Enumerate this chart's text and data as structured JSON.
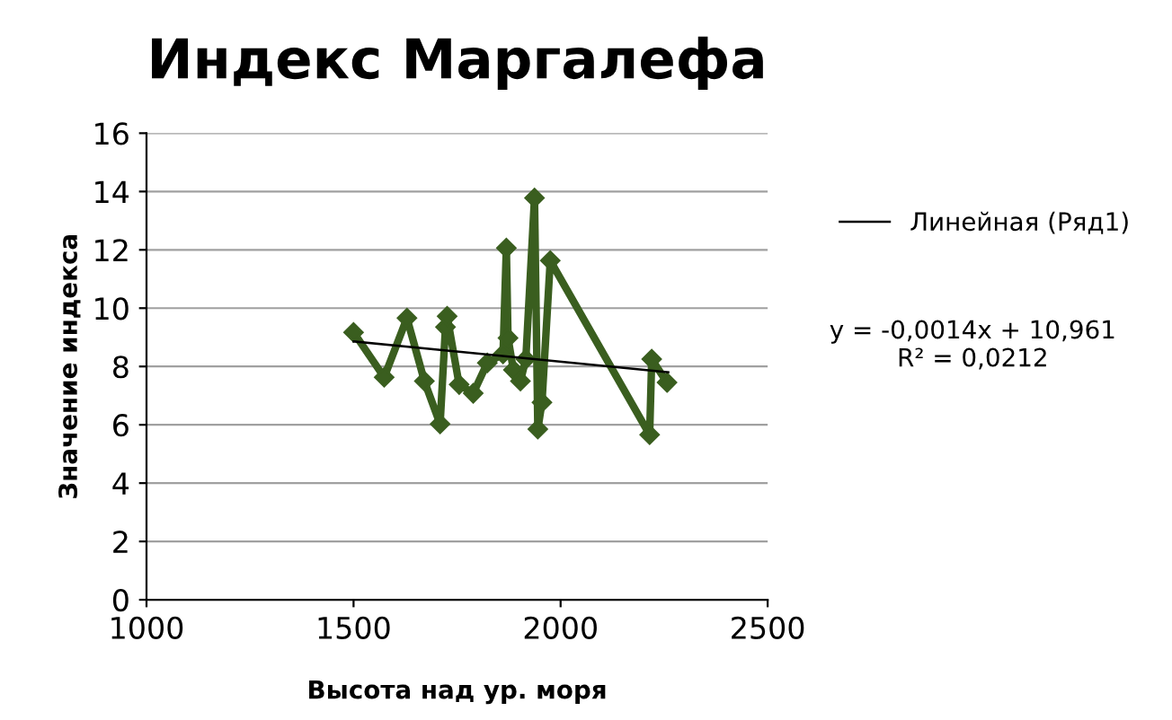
{
  "chart_data": {
    "type": "line",
    "title": "Индекс Маргалефа",
    "xlabel": "Высота над ур. моря",
    "ylabel": "Значение индекса",
    "xlim": [
      1000,
      2500
    ],
    "xticks": [
      1000,
      1500,
      2000,
      2500
    ],
    "ylim": [
      0,
      16
    ],
    "yticks": [
      0,
      2,
      4,
      6,
      8,
      10,
      12,
      14,
      16
    ],
    "grid": "y",
    "legend": "right",
    "marker": "diamond",
    "line_style": "solid",
    "series": [
      {
        "color": "#3a5e1f",
        "x": [
          1500,
          1574,
          1629,
          1671,
          1709,
          1722,
          1726,
          1755,
          1789,
          1823,
          1861,
          1869,
          1873,
          1886,
          1903,
          1916,
          1937,
          1945,
          1955,
          1975,
          2215,
          2220,
          2257
        ],
        "values": [
          9.17,
          7.63,
          9.66,
          7.5,
          6.03,
          9.35,
          9.72,
          7.38,
          7.08,
          8.12,
          8.43,
          12.06,
          8.98,
          7.88,
          7.5,
          8.25,
          13.78,
          5.85,
          6.77,
          11.63,
          5.66,
          8.25,
          7.45
        ]
      },
      {
        "type": "line",
        "name": "Линейная (Ряд1)",
        "color": "#000000",
        "marker": "none",
        "x": [
          1500,
          2260
        ],
        "values": [
          8.86,
          7.8
        ]
      }
    ],
    "annotations": [
      "y = -0,0014x + 10,961\nR² = 0,0212"
    ]
  }
}
